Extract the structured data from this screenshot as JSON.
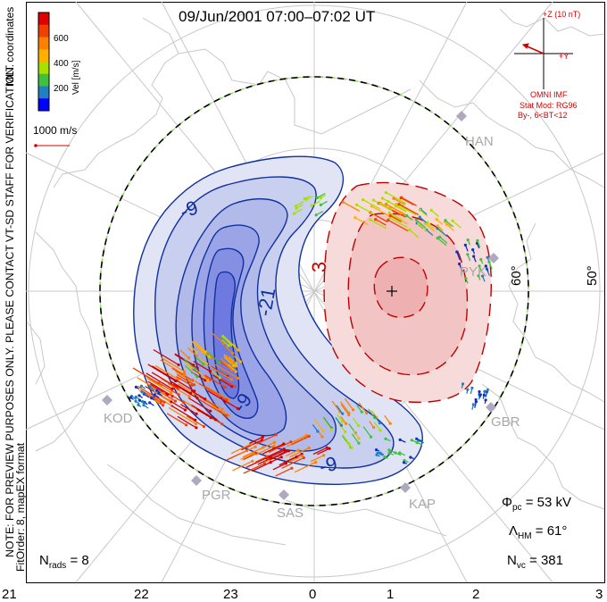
{
  "title": "09/Jun/2001 07:00–07:02 UT",
  "colorbar": {
    "title": "Vel [m/s]",
    "ticks": [
      "600",
      "400",
      "200"
    ],
    "colors": [
      "#e00000",
      "#f04000",
      "#ff8000",
      "#ffb000",
      "#a8e000",
      "#40c040",
      "#2080c0",
      "#0000ff"
    ]
  },
  "coords_label": "MLT coordinates",
  "ref_vector_label": "1000 m/s",
  "imf": {
    "z_label": "+Z (10 nT)",
    "y_label": "+Y",
    "source": "OMNI IMF",
    "model": "Stat Mod: RG96",
    "condition": "By-, 6<BT<12"
  },
  "note_line1": "NOTE: FOR PREVIEW PURPOSES ONLY. PLEASE CONTACT VT-SD STAFF FOR VERIFICATION.",
  "note_line2": "FitOrder: 8, mapEX format",
  "latitude_labels": [
    "60°",
    "50°"
  ],
  "stations": [
    "HAN",
    "PYK",
    "KOD",
    "PGR",
    "SAS",
    "KAP",
    "GBR"
  ],
  "contour_labels": [
    "-9",
    "-21",
    "-9",
    "-9",
    "3"
  ],
  "stats": {
    "phi_pc": "53 kV",
    "lambda_hm": "61°",
    "n_vc": "381",
    "n_rads": "8"
  },
  "mlt_ticks": [
    "21",
    "22",
    "23",
    "0",
    "1",
    "2",
    "3"
  ]
}
